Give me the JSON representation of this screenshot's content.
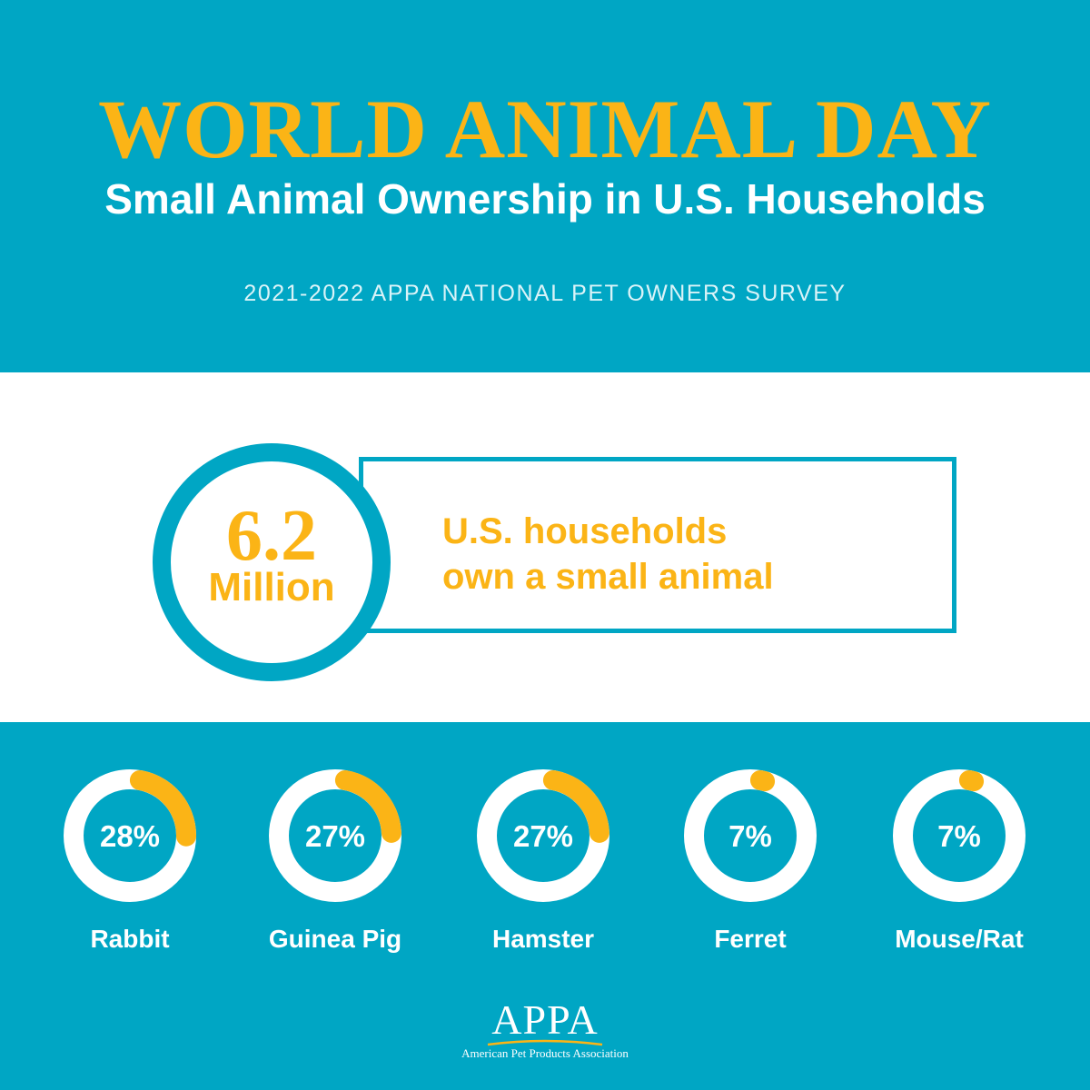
{
  "header": {
    "title": "WORLD ANIMAL DAY",
    "subtitle": "Small Animal Ownership in U.S. Households",
    "source": "2021-2022 APPA NATIONAL PET OWNERS SURVEY"
  },
  "highlight": {
    "number": "6.2",
    "unit": "Million",
    "description_line1": "U.S. households",
    "description_line2": "own a small animal"
  },
  "chart_data": {
    "type": "pie",
    "style": "donut",
    "categories": [
      "Rabbit",
      "Guinea Pig",
      "Hamster",
      "Ferret",
      "Mouse/Rat"
    ],
    "values": [
      28,
      27,
      27,
      7,
      7
    ],
    "value_labels": [
      "28%",
      "27%",
      "27%",
      "7%",
      "7%"
    ],
    "unit": "%",
    "title": "",
    "legend": "none"
  },
  "colors": {
    "background": "#00a6c4",
    "accent": "#fbb416",
    "band": "#ffffff",
    "ring_track": "#ffffff"
  },
  "logo": {
    "wordmark": "APPA",
    "tagline": "American Pet Products Association"
  }
}
